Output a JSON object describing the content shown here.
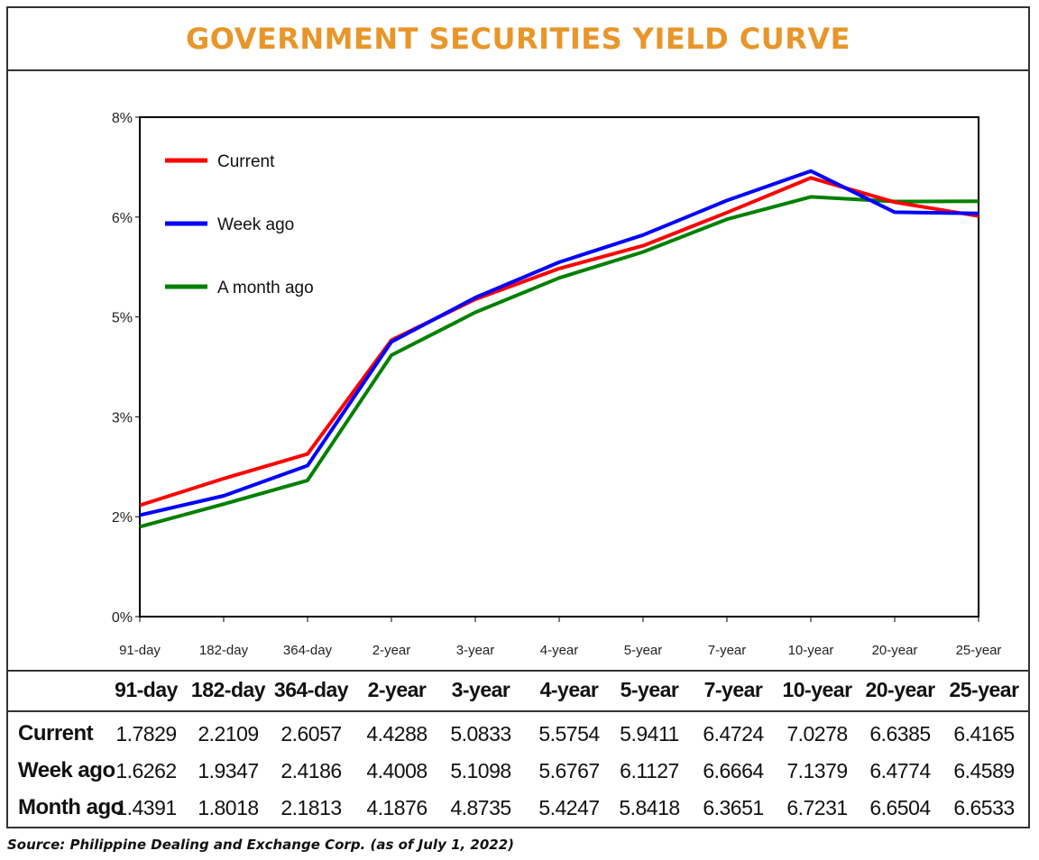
{
  "title": "GOVERNMENT SECURITIES YIELD CURVE",
  "source": "Source: Philippine Dealing and Exchange Corp. (as of July 1, 2022)",
  "colors": {
    "title": "#e8962a",
    "current": "#ff0000",
    "week_ago": "#0000ff",
    "month_ago": "#008000"
  },
  "chart_data": {
    "type": "line",
    "categories": [
      "91-day",
      "182-day",
      "364-day",
      "2-year",
      "3-year",
      "4-year",
      "5-year",
      "7-year",
      "10-year",
      "20-year",
      "25-year"
    ],
    "yticks": [
      "0%",
      "2%",
      "3%",
      "5%",
      "6%",
      "8%"
    ],
    "ylim": [
      0,
      8
    ],
    "grid": false,
    "legend": "top-left",
    "series": [
      {
        "name": "Current",
        "values": [
          1.7829,
          2.2109,
          2.6057,
          4.4288,
          5.0833,
          5.5754,
          5.9411,
          6.4724,
          7.0278,
          6.6385,
          6.4165
        ]
      },
      {
        "name": "Week ago",
        "values": [
          1.6262,
          1.9347,
          2.4186,
          4.4008,
          5.1098,
          5.6767,
          6.1127,
          6.6664,
          7.1379,
          6.4774,
          6.4589
        ]
      },
      {
        "name": "A month ago",
        "values": [
          1.4391,
          1.8018,
          2.1813,
          4.1876,
          4.8735,
          5.4247,
          5.8418,
          6.3651,
          6.7231,
          6.6504,
          6.6533
        ]
      }
    ]
  },
  "table": {
    "headers": [
      "91-day",
      "182-day",
      "364-day",
      "2-year",
      "3-year",
      "4-year",
      "5-year",
      "7-year",
      "10-year",
      "20-year",
      "25-year"
    ],
    "rows": [
      {
        "label": "Current",
        "values": [
          "1.7829",
          "2.2109",
          "2.6057",
          "4.4288",
          "5.0833",
          "5.5754",
          "5.9411",
          "6.4724",
          "7.0278",
          "6.6385",
          "6.4165"
        ]
      },
      {
        "label": "Week ago",
        "values": [
          "1.6262",
          "1.9347",
          "2.4186",
          "4.4008",
          "5.1098",
          "5.6767",
          "6.1127",
          "6.6664",
          "7.1379",
          "6.4774",
          "6.4589"
        ]
      },
      {
        "label": "Month ago",
        "values": [
          "1.4391",
          "1.8018",
          "2.1813",
          "4.1876",
          "4.8735",
          "5.4247",
          "5.8418",
          "6.3651",
          "6.7231",
          "6.6504",
          "6.6533"
        ]
      }
    ]
  }
}
